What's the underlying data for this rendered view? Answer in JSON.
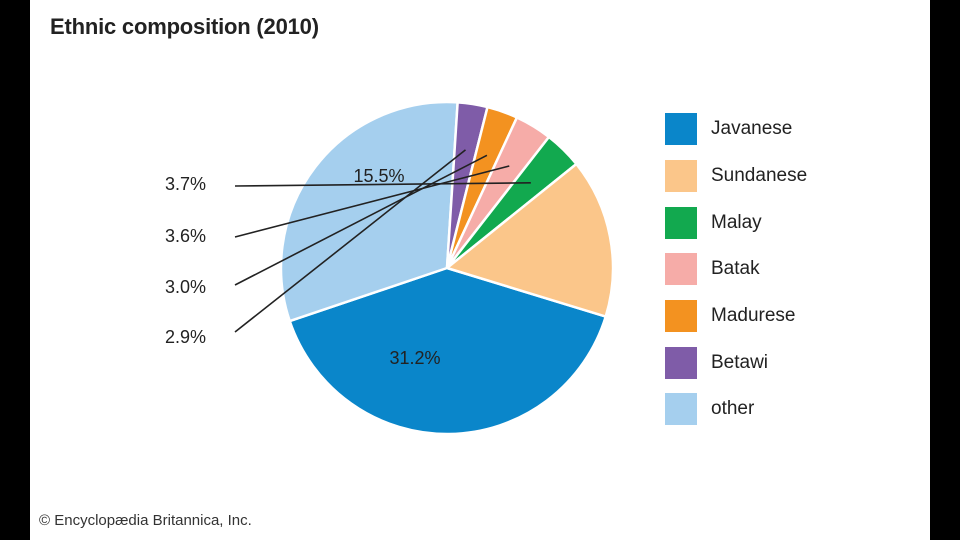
{
  "chart_data": {
    "type": "pie",
    "title": "Ethnic composition (2010)",
    "slices": [
      {
        "label": "Javanese",
        "value": 40.1,
        "display": "40.1%",
        "color": "#0A86CA",
        "label_color": "#ffffff"
      },
      {
        "label": "other",
        "value": 31.2,
        "display": "31.2%",
        "color": "#A5CFEE",
        "label_color": "#222222"
      },
      {
        "label": "Betawi",
        "value": 2.9,
        "display": "2.9%",
        "color": "#7F5CA8",
        "label_color": "#222222"
      },
      {
        "label": "Madurese",
        "value": 3.0,
        "display": "3.0%",
        "color": "#F39220",
        "label_color": "#222222"
      },
      {
        "label": "Batak",
        "value": 3.6,
        "display": "3.6%",
        "color": "#F6ACA8",
        "label_color": "#222222"
      },
      {
        "label": "Malay",
        "value": 3.7,
        "display": "3.7%",
        "color": "#12A94F",
        "label_color": "#222222"
      },
      {
        "label": "Sundanese",
        "value": 15.5,
        "display": "15.5%",
        "color": "#FBC68A",
        "label_color": "#222222"
      }
    ],
    "legend": {
      "placement": "right",
      "items": [
        {
          "label": "Javanese",
          "color": "#0A86CA"
        },
        {
          "label": "Sundanese",
          "color": "#FBC68A"
        },
        {
          "label": "Malay",
          "color": "#12A94F"
        },
        {
          "label": "Batak",
          "color": "#F6ACA8"
        },
        {
          "label": "Madurese",
          "color": "#F39220"
        },
        {
          "label": "Betawi",
          "color": "#7F5CA8"
        },
        {
          "label": "other",
          "color": "#A5CFEE"
        }
      ]
    }
  },
  "credit": "© Encyclopædia Britannica, Inc."
}
